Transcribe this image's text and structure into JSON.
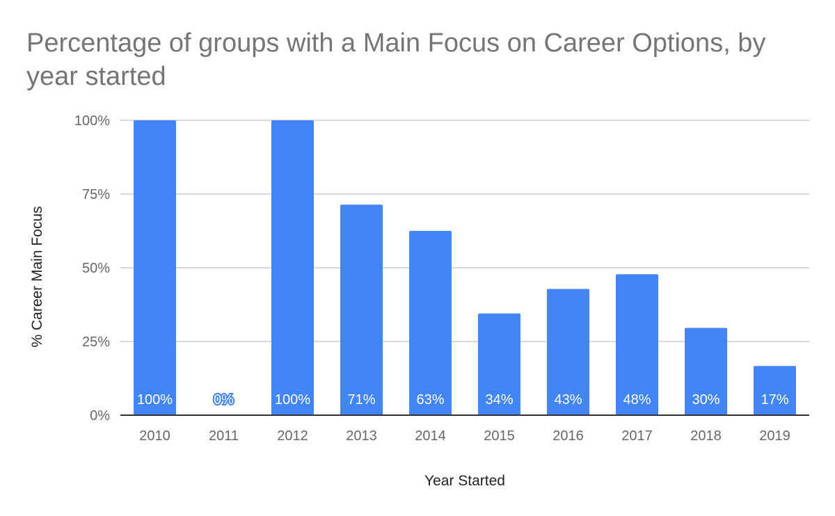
{
  "chart_data": {
    "type": "bar",
    "title": "Percentage of groups with a Main Focus on Career Options, by year started",
    "xlabel": "Year Started",
    "ylabel": "% Career Main Focus",
    "categories": [
      "2010",
      "2011",
      "2012",
      "2013",
      "2014",
      "2015",
      "2016",
      "2017",
      "2018",
      "2019"
    ],
    "values": [
      1.0,
      0.0,
      1.0,
      0.714,
      0.625,
      0.345,
      0.428,
      0.478,
      0.296,
      0.167
    ],
    "data_labels": [
      "100%",
      "0%",
      "100%",
      "71%",
      "63%",
      "34%",
      "43%",
      "48%",
      "30%",
      "17%"
    ],
    "yticks": [
      "0%",
      "25%",
      "50%",
      "75%",
      "100%"
    ],
    "ytick_values": [
      0,
      0.25,
      0.5,
      0.75,
      1.0
    ],
    "ylim": [
      0,
      1
    ],
    "grid": true,
    "legend": "none",
    "bar_color": "#4285f4",
    "grid_color": "#cccccc",
    "axis_color": "#333333"
  }
}
